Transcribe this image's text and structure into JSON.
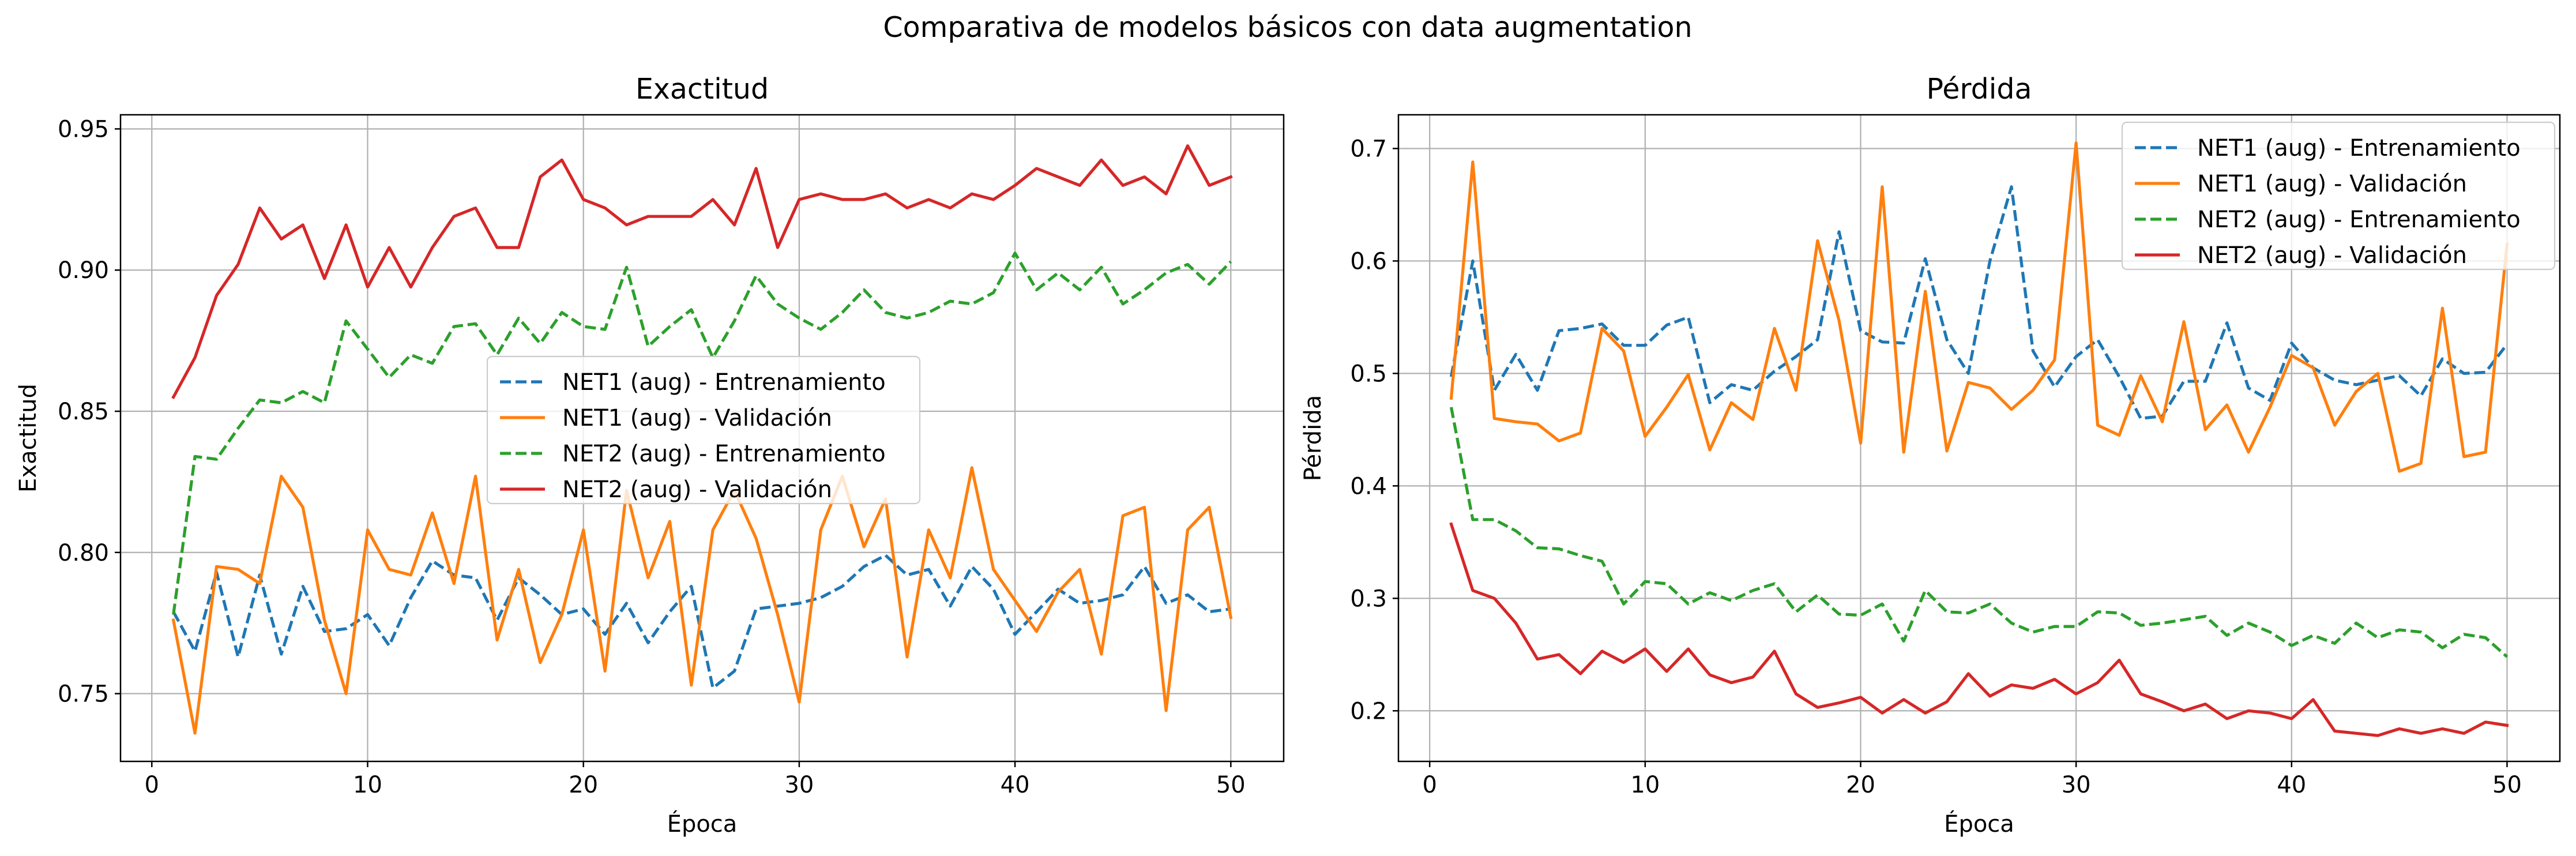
{
  "figure": {
    "suptitle": "Comparativa de modelos básicos con data augmentation"
  },
  "colors": {
    "net1_train": "#1f77b4",
    "net1_val": "#ff7f0e",
    "net2_train": "#2ca02c",
    "net2_val": "#d62728",
    "grid": "#b0b0b0"
  },
  "chart_data": [
    {
      "type": "line",
      "title": "Exactitud",
      "xlabel": "Época",
      "ylabel": "Exactitud",
      "xlim": [
        -1.45,
        52.45
      ],
      "ylim": [
        0.726,
        0.955
      ],
      "xticks": [
        0,
        10,
        20,
        30,
        40,
        50
      ],
      "yticks": [
        0.75,
        0.8,
        0.85,
        0.9,
        0.95
      ],
      "ytick_labels": [
        "0.75",
        "0.80",
        "0.85",
        "0.90",
        "0.95"
      ],
      "grid": true,
      "legend_position": "center-right",
      "x": [
        1,
        2,
        3,
        4,
        5,
        6,
        7,
        8,
        9,
        10,
        11,
        12,
        13,
        14,
        15,
        16,
        17,
        18,
        19,
        20,
        21,
        22,
        23,
        24,
        25,
        26,
        27,
        28,
        29,
        30,
        31,
        32,
        33,
        34,
        35,
        36,
        37,
        38,
        39,
        40,
        41,
        42,
        43,
        44,
        45,
        46,
        47,
        48,
        49,
        50
      ],
      "series": [
        {
          "name": "NET1 (aug) - Entrenamiento",
          "style": "dashed",
          "color": "#1f77b4",
          "values": [
            0.779,
            0.765,
            0.793,
            0.763,
            0.792,
            0.764,
            0.788,
            0.772,
            0.773,
            0.778,
            0.767,
            0.784,
            0.797,
            0.792,
            0.791,
            0.776,
            0.791,
            0.785,
            0.778,
            0.78,
            0.771,
            0.782,
            0.768,
            0.779,
            0.788,
            0.752,
            0.758,
            0.78,
            0.781,
            0.782,
            0.784,
            0.788,
            0.795,
            0.799,
            0.792,
            0.794,
            0.781,
            0.795,
            0.787,
            0.771,
            0.779,
            0.787,
            0.782,
            0.783,
            0.785,
            0.795,
            0.782,
            0.785,
            0.779,
            0.78
          ]
        },
        {
          "name": "NET1 (aug) - Validación",
          "style": "solid",
          "color": "#ff7f0e",
          "values": [
            0.776,
            0.736,
            0.795,
            0.794,
            0.789,
            0.827,
            0.816,
            0.776,
            0.75,
            0.808,
            0.794,
            0.792,
            0.814,
            0.789,
            0.827,
            0.769,
            0.794,
            0.761,
            0.778,
            0.808,
            0.758,
            0.822,
            0.791,
            0.811,
            0.753,
            0.808,
            0.822,
            0.805,
            0.778,
            0.747,
            0.808,
            0.827,
            0.802,
            0.819,
            0.763,
            0.808,
            0.791,
            0.83,
            0.794,
            0.783,
            0.772,
            0.786,
            0.794,
            0.764,
            0.813,
            0.816,
            0.744,
            0.808,
            0.816,
            0.777
          ]
        },
        {
          "name": "NET2 (aug) - Entrenamiento",
          "style": "dashed",
          "color": "#2ca02c",
          "values": [
            0.778,
            0.834,
            0.833,
            0.844,
            0.854,
            0.853,
            0.857,
            0.853,
            0.882,
            0.872,
            0.862,
            0.87,
            0.867,
            0.88,
            0.881,
            0.87,
            0.883,
            0.874,
            0.885,
            0.88,
            0.879,
            0.901,
            0.873,
            0.88,
            0.886,
            0.869,
            0.882,
            0.898,
            0.888,
            0.883,
            0.879,
            0.885,
            0.893,
            0.885,
            0.883,
            0.885,
            0.889,
            0.888,
            0.892,
            0.906,
            0.893,
            0.899,
            0.893,
            0.901,
            0.888,
            0.893,
            0.899,
            0.902,
            0.895,
            0.903
          ]
        },
        {
          "name": "NET2 (aug) - Validación",
          "style": "solid",
          "color": "#d62728",
          "values": [
            0.855,
            0.869,
            0.891,
            0.902,
            0.922,
            0.911,
            0.916,
            0.897,
            0.916,
            0.894,
            0.908,
            0.894,
            0.908,
            0.919,
            0.922,
            0.908,
            0.908,
            0.933,
            0.939,
            0.925,
            0.922,
            0.916,
            0.919,
            0.919,
            0.919,
            0.925,
            0.916,
            0.936,
            0.908,
            0.925,
            0.927,
            0.925,
            0.925,
            0.927,
            0.922,
            0.925,
            0.922,
            0.927,
            0.925,
            0.93,
            0.936,
            0.933,
            0.93,
            0.939,
            0.93,
            0.933,
            0.927,
            0.944,
            0.93,
            0.933
          ]
        }
      ]
    },
    {
      "type": "line",
      "title": "Pérdida",
      "xlabel": "Época",
      "ylabel": "Pérdida",
      "xlim": [
        -1.45,
        52.45
      ],
      "ylim": [
        0.155,
        0.73
      ],
      "xticks": [
        0,
        10,
        20,
        30,
        40,
        50
      ],
      "yticks": [
        0.2,
        0.3,
        0.4,
        0.5,
        0.6,
        0.7
      ],
      "ytick_labels": [
        "0.2",
        "0.3",
        "0.4",
        "0.5",
        "0.6",
        "0.7"
      ],
      "grid": true,
      "legend_position": "upper-right",
      "x": [
        1,
        2,
        3,
        4,
        5,
        6,
        7,
        8,
        9,
        10,
        11,
        12,
        13,
        14,
        15,
        16,
        17,
        18,
        19,
        20,
        21,
        22,
        23,
        24,
        25,
        26,
        27,
        28,
        29,
        30,
        31,
        32,
        33,
        34,
        35,
        36,
        37,
        38,
        39,
        40,
        41,
        42,
        43,
        44,
        45,
        46,
        47,
        48,
        49,
        50
      ],
      "series": [
        {
          "name": "NET1 (aug) - Entrenamiento",
          "style": "dashed",
          "color": "#1f77b4",
          "values": [
            0.497,
            0.6,
            0.485,
            0.517,
            0.485,
            0.538,
            0.54,
            0.544,
            0.525,
            0.525,
            0.543,
            0.55,
            0.474,
            0.49,
            0.485,
            0.502,
            0.515,
            0.53,
            0.626,
            0.538,
            0.528,
            0.527,
            0.602,
            0.53,
            0.5,
            0.6,
            0.666,
            0.52,
            0.488,
            0.515,
            0.53,
            0.497,
            0.46,
            0.462,
            0.493,
            0.493,
            0.545,
            0.487,
            0.476,
            0.527,
            0.505,
            0.494,
            0.49,
            0.494,
            0.498,
            0.48,
            0.513,
            0.5,
            0.501,
            0.526
          ]
        },
        {
          "name": "NET1 (aug) - Validación",
          "style": "solid",
          "color": "#ff7f0e",
          "values": [
            0.478,
            0.688,
            0.46,
            0.457,
            0.455,
            0.44,
            0.447,
            0.54,
            0.52,
            0.444,
            0.47,
            0.499,
            0.432,
            0.474,
            0.459,
            0.54,
            0.485,
            0.618,
            0.547,
            0.438,
            0.666,
            0.43,
            0.573,
            0.431,
            0.492,
            0.487,
            0.468,
            0.485,
            0.512,
            0.705,
            0.454,
            0.445,
            0.498,
            0.457,
            0.546,
            0.45,
            0.472,
            0.43,
            0.47,
            0.516,
            0.505,
            0.454,
            0.484,
            0.5,
            0.413,
            0.42,
            0.558,
            0.426,
            0.43,
            0.615
          ]
        },
        {
          "name": "NET2 (aug) - Entrenamiento",
          "style": "dashed",
          "color": "#2ca02c",
          "values": [
            0.47,
            0.37,
            0.37,
            0.36,
            0.345,
            0.344,
            0.338,
            0.333,
            0.295,
            0.315,
            0.313,
            0.295,
            0.305,
            0.298,
            0.307,
            0.313,
            0.288,
            0.303,
            0.286,
            0.285,
            0.295,
            0.262,
            0.307,
            0.288,
            0.287,
            0.295,
            0.278,
            0.27,
            0.275,
            0.275,
            0.288,
            0.287,
            0.276,
            0.278,
            0.281,
            0.284,
            0.267,
            0.278,
            0.27,
            0.258,
            0.267,
            0.26,
            0.278,
            0.265,
            0.272,
            0.27,
            0.256,
            0.268,
            0.265,
            0.248
          ]
        },
        {
          "name": "NET2 (aug) - Validación",
          "style": "solid",
          "color": "#d62728",
          "values": [
            0.366,
            0.307,
            0.3,
            0.278,
            0.246,
            0.25,
            0.233,
            0.253,
            0.243,
            0.255,
            0.235,
            0.255,
            0.232,
            0.225,
            0.23,
            0.253,
            0.215,
            0.203,
            0.207,
            0.212,
            0.198,
            0.21,
            0.198,
            0.208,
            0.233,
            0.213,
            0.223,
            0.22,
            0.228,
            0.215,
            0.225,
            0.245,
            0.215,
            0.208,
            0.2,
            0.206,
            0.193,
            0.2,
            0.198,
            0.193,
            0.21,
            0.182,
            0.18,
            0.178,
            0.184,
            0.18,
            0.184,
            0.18,
            0.19,
            0.187
          ]
        }
      ]
    }
  ]
}
